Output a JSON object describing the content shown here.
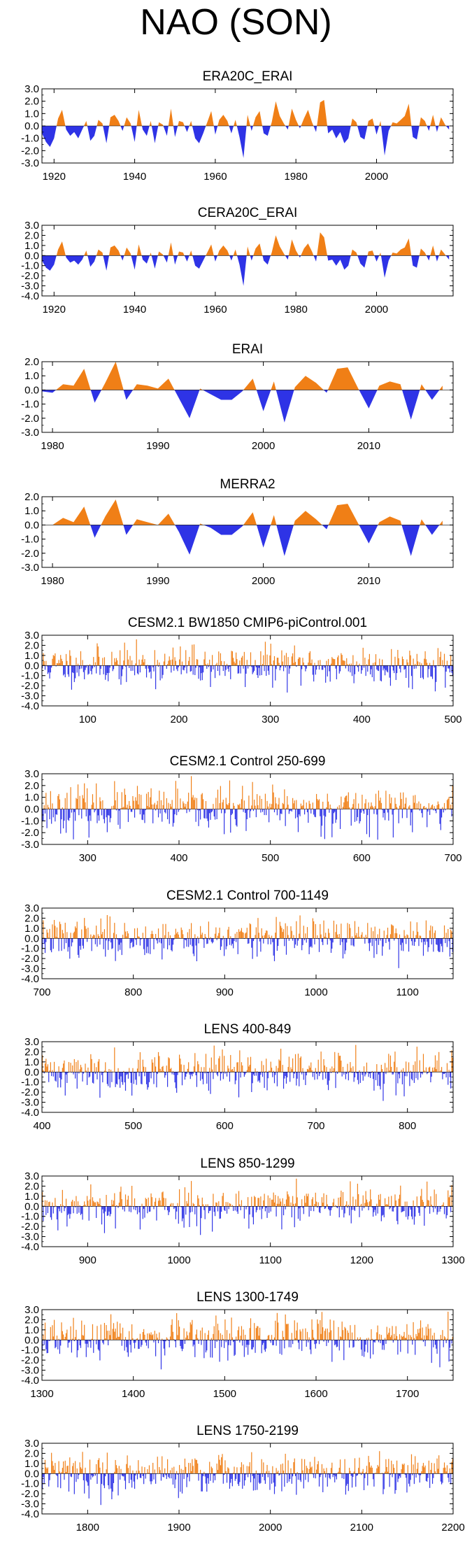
{
  "title": "NAO (SON)",
  "colors": {
    "positive": "#f07f16",
    "negative": "#2e33e6",
    "axis": "#000000"
  },
  "chart_data": [
    {
      "type": "area",
      "title": "ERA20C_ERAI",
      "xlim": [
        1917,
        2019
      ],
      "xticks": [
        1920,
        1940,
        1960,
        1980,
        2000
      ],
      "ylim": [
        -3.0,
        3.0
      ],
      "yticks": [
        "3.0",
        "2.0",
        "1.0",
        "0.0",
        "-1.0",
        "-2.0",
        "-3.0"
      ],
      "series": [
        {
          "x": [
            1917,
            1918,
            1919,
            1920,
            1921,
            1922,
            1923,
            1924,
            1925,
            1926,
            1927,
            1928,
            1929,
            1930,
            1931,
            1932,
            1933,
            1934,
            1935,
            1936,
            1937,
            1938,
            1939,
            1940,
            1941,
            1942,
            1943,
            1944,
            1945,
            1946,
            1947,
            1948,
            1949,
            1950,
            1951,
            1952,
            1953,
            1954,
            1955,
            1956,
            1957,
            1958,
            1959,
            1960,
            1961,
            1962,
            1963,
            1964,
            1965,
            1966,
            1967,
            1968,
            1969,
            1970,
            1971,
            1972,
            1973,
            1974,
            1975,
            1976,
            1977,
            1978,
            1979,
            1980,
            1981,
            1982,
            1983,
            1984,
            1985,
            1986,
            1987,
            1988,
            1989,
            1990,
            1991,
            1992,
            1993,
            1994,
            1995,
            1996,
            1997,
            1998,
            1999,
            2000,
            2001,
            2002,
            2003,
            2004,
            2005,
            2006,
            2007,
            2008,
            2009,
            2010,
            2011,
            2012,
            2013,
            2014,
            2015,
            2016,
            2017,
            2018
          ],
          "values": [
            -0.6,
            -1.3,
            -1.7,
            -1.0,
            0.6,
            1.3,
            -0.3,
            -0.8,
            -0.5,
            -1.0,
            -0.3,
            0.4,
            -1.2,
            -0.8,
            0.5,
            0.2,
            -1.4,
            0.7,
            0.9,
            0.4,
            -0.4,
            0.7,
            0.2,
            -1.3,
            1.3,
            -0.3,
            -0.8,
            0.4,
            -1.4,
            0.3,
            0.1,
            -0.8,
            1.4,
            -0.9,
            0.4,
            0.3,
            -0.5,
            0.4,
            -1.0,
            -1.4,
            -0.6,
            0.3,
            1.2,
            -0.7,
            0.5,
            0.9,
            0.4,
            -0.6,
            0.5,
            -0.9,
            -2.6,
            0.9,
            -0.4,
            0.7,
            1.2,
            -0.6,
            -0.8,
            0.3,
            2.0,
            0.8,
            0.2,
            -0.3,
            1.4,
            0.5,
            -0.2,
            0.6,
            1.3,
            0.3,
            -0.5,
            1.9,
            2.1,
            -0.6,
            -0.3,
            -1.0,
            -0.5,
            -1.4,
            -1.0,
            0.6,
            0.3,
            -0.9,
            -1.1,
            0.4,
            0.6,
            -0.7,
            0.4,
            -2.4,
            -0.4,
            0.3,
            0.2,
            0.5,
            0.8,
            1.8,
            -0.9,
            -1.1,
            0.7,
            0.4,
            -0.4,
            0.9,
            -0.5,
            0.7,
            0.1,
            -0.3
          ]
        }
      ]
    },
    {
      "type": "area",
      "title": "CERA20C_ERAI",
      "xlim": [
        1917,
        2019
      ],
      "xticks": [
        1920,
        1940,
        1960,
        1980,
        2000
      ],
      "ylim": [
        -4.0,
        3.0
      ],
      "yticks": [
        "3.0",
        "2.0",
        "1.0",
        "0.0",
        "-1.0",
        "-2.0",
        "-3.0",
        "-4.0"
      ],
      "series": [
        {
          "x": [
            1917,
            1918,
            1919,
            1920,
            1921,
            1922,
            1923,
            1924,
            1925,
            1926,
            1927,
            1928,
            1929,
            1930,
            1931,
            1932,
            1933,
            1934,
            1935,
            1936,
            1937,
            1938,
            1939,
            1940,
            1941,
            1942,
            1943,
            1944,
            1945,
            1946,
            1947,
            1948,
            1949,
            1950,
            1951,
            1952,
            1953,
            1954,
            1955,
            1956,
            1957,
            1958,
            1959,
            1960,
            1961,
            1962,
            1963,
            1964,
            1965,
            1966,
            1967,
            1968,
            1969,
            1970,
            1971,
            1972,
            1973,
            1974,
            1975,
            1976,
            1977,
            1978,
            1979,
            1980,
            1981,
            1982,
            1983,
            1984,
            1985,
            1986,
            1987,
            1988,
            1989,
            1990,
            1991,
            1992,
            1993,
            1994,
            1995,
            1996,
            1997,
            1998,
            1999,
            2000,
            2001,
            2002,
            2003,
            2004,
            2005,
            2006,
            2007,
            2008,
            2009,
            2010,
            2011,
            2012,
            2013,
            2014,
            2015,
            2016,
            2017,
            2018
          ],
          "values": [
            -0.5,
            -1.2,
            -1.5,
            -0.9,
            0.6,
            1.4,
            -0.2,
            -0.7,
            -0.5,
            -0.9,
            -0.4,
            0.5,
            -1.1,
            -0.6,
            0.6,
            0.3,
            -1.5,
            0.8,
            1.0,
            0.5,
            -0.5,
            0.8,
            0.2,
            -1.4,
            1.1,
            -0.4,
            -0.8,
            0.3,
            -1.3,
            0.4,
            0.1,
            -0.7,
            1.3,
            -0.9,
            0.4,
            0.3,
            -0.6,
            0.5,
            -1.0,
            -1.3,
            -0.5,
            0.3,
            1.1,
            -0.6,
            0.5,
            1.0,
            0.5,
            -0.5,
            0.6,
            -0.9,
            -3.0,
            0.9,
            -0.5,
            0.7,
            1.2,
            -0.5,
            -0.9,
            0.3,
            2.0,
            0.9,
            0.2,
            -0.4,
            1.6,
            0.5,
            -0.2,
            0.7,
            1.2,
            0.4,
            -0.6,
            2.3,
            1.8,
            -0.5,
            -0.4,
            -1.0,
            -0.4,
            -1.4,
            -1.0,
            0.6,
            0.3,
            -0.8,
            -1.2,
            0.4,
            0.5,
            -0.6,
            0.3,
            -2.2,
            -0.5,
            0.3,
            0.2,
            0.6,
            0.8,
            1.7,
            -1.0,
            -1.2,
            0.7,
            0.3,
            -0.5,
            1.0,
            -0.6,
            0.6,
            0.1,
            -0.4
          ]
        }
      ]
    },
    {
      "type": "area",
      "title": "ERAI",
      "xlim": [
        1979,
        2018
      ],
      "xticks": [
        1980,
        1990,
        2000,
        2010
      ],
      "ylim": [
        -3.0,
        2.0
      ],
      "yticks": [
        "2.0",
        "1.0",
        "0.0",
        "-1.0",
        "-2.0",
        "-3.0"
      ],
      "series": [
        {
          "x": [
            1979,
            1980,
            1981,
            1982,
            1983,
            1984,
            1985,
            1986,
            1987,
            1988,
            1989,
            1990,
            1991,
            1992,
            1993,
            1994,
            1995,
            1996,
            1997,
            1998,
            1999,
            2000,
            2001,
            2002,
            2003,
            2004,
            2005,
            2006,
            2007,
            2008,
            2009,
            2010,
            2011,
            2012,
            2013,
            2014,
            2015,
            2016,
            2017
          ],
          "values": [
            -0.1,
            -0.2,
            0.4,
            0.3,
            1.5,
            -0.9,
            0.5,
            2.0,
            -0.7,
            0.4,
            0.3,
            0.1,
            0.8,
            -0.6,
            -2.0,
            0.1,
            -0.3,
            -0.7,
            -0.7,
            -0.1,
            0.8,
            -1.5,
            0.6,
            -2.3,
            0.2,
            1.0,
            0.5,
            -0.2,
            1.5,
            1.6,
            0.1,
            -1.3,
            0.3,
            0.6,
            0.4,
            -2.1,
            0.4,
            -0.7,
            0.3
          ]
        }
      ]
    },
    {
      "type": "area",
      "title": "MERRA2",
      "xlim": [
        1979,
        2018
      ],
      "xticks": [
        1980,
        1990,
        2000,
        2010
      ],
      "ylim": [
        -3.0,
        2.0
      ],
      "yticks": [
        "2.0",
        "1.0",
        "0.0",
        "-1.0",
        "-2.0",
        "-3.0"
      ],
      "series": [
        {
          "x": [
            1980,
            1981,
            1982,
            1983,
            1984,
            1985,
            1986,
            1987,
            1988,
            1989,
            1990,
            1991,
            1992,
            1993,
            1994,
            1995,
            1996,
            1997,
            1998,
            1999,
            2000,
            2001,
            2002,
            2003,
            2004,
            2005,
            2006,
            2007,
            2008,
            2009,
            2010,
            2011,
            2012,
            2013,
            2014,
            2015,
            2016,
            2017
          ],
          "values": [
            0.0,
            0.5,
            0.2,
            1.3,
            -0.9,
            0.6,
            1.8,
            -0.7,
            0.4,
            0.2,
            0.0,
            0.8,
            -0.5,
            -2.1,
            0.1,
            -0.2,
            -0.7,
            -0.7,
            -0.1,
            0.9,
            -1.6,
            0.7,
            -2.2,
            0.3,
            1.0,
            0.4,
            -0.3,
            1.4,
            1.5,
            0.1,
            -1.3,
            0.2,
            0.6,
            0.3,
            -2.2,
            0.4,
            -0.7,
            0.3
          ]
        }
      ]
    },
    {
      "type": "bar",
      "title": "CESM2.1 BW1850 CMIP6-piControl.001",
      "xlim": [
        50,
        500
      ],
      "xticks": [
        100,
        200,
        300,
        400,
        500
      ],
      "ylim": [
        -4.0,
        3.0
      ],
      "yticks": [
        "3.0",
        "2.0",
        "1.0",
        "0.0",
        "-1.0",
        "-2.0",
        "-3.0",
        "-4.0"
      ],
      "series": [
        {
          "x_start": 50,
          "x_end": 499,
          "seed": 11,
          "amplitude": 0.95
        }
      ]
    },
    {
      "type": "bar",
      "title": "CESM2.1 Control 250-699",
      "xlim": [
        250,
        700
      ],
      "xticks": [
        300,
        400,
        500,
        600,
        700
      ],
      "ylim": [
        -3.0,
        3.0
      ],
      "yticks": [
        "3.0",
        "2.0",
        "1.0",
        "0.0",
        "-1.0",
        "-2.0",
        "-3.0"
      ],
      "series": [
        {
          "x_start": 250,
          "x_end": 699,
          "seed": 23,
          "amplitude": 0.95
        }
      ]
    },
    {
      "type": "bar",
      "title": "CESM2.1 Control 700-1149",
      "xlim": [
        700,
        1150
      ],
      "xticks": [
        700,
        800,
        900,
        1000,
        1100
      ],
      "ylim": [
        -4.0,
        3.0
      ],
      "yticks": [
        "3.0",
        "2.0",
        "1.0",
        "0.0",
        "-1.0",
        "-2.0",
        "-3.0",
        "-4.0"
      ],
      "series": [
        {
          "x_start": 700,
          "x_end": 1149,
          "seed": 37,
          "amplitude": 0.95
        }
      ]
    },
    {
      "type": "bar",
      "title": "LENS 400-849",
      "xlim": [
        400,
        850
      ],
      "xticks": [
        400,
        500,
        600,
        700,
        800
      ],
      "ylim": [
        -4.0,
        3.0
      ],
      "yticks": [
        "3.0",
        "2.0",
        "1.0",
        "0.0",
        "-1.0",
        "-2.0",
        "-3.0",
        "-4.0"
      ],
      "series": [
        {
          "x_start": 400,
          "x_end": 849,
          "seed": 41,
          "amplitude": 1.0
        }
      ]
    },
    {
      "type": "bar",
      "title": "LENS 850-1299",
      "xlim": [
        850,
        1300
      ],
      "xticks": [
        900,
        1000,
        1100,
        1200,
        1300
      ],
      "ylim": [
        -4.0,
        3.0
      ],
      "yticks": [
        "3.0",
        "2.0",
        "1.0",
        "0.0",
        "-1.0",
        "-2.0",
        "-3.0",
        "-4.0"
      ],
      "series": [
        {
          "x_start": 850,
          "x_end": 1299,
          "seed": 53,
          "amplitude": 1.0
        }
      ]
    },
    {
      "type": "bar",
      "title": "LENS 1300-1749",
      "xlim": [
        1300,
        1750
      ],
      "xticks": [
        1300,
        1400,
        1500,
        1600,
        1700
      ],
      "ylim": [
        -4.0,
        3.0
      ],
      "yticks": [
        "3.0",
        "2.0",
        "1.0",
        "0.0",
        "-1.0",
        "-2.0",
        "-3.0",
        "-4.0"
      ],
      "series": [
        {
          "x_start": 1300,
          "x_end": 1749,
          "seed": 67,
          "amplitude": 1.0
        }
      ]
    },
    {
      "type": "bar",
      "title": "LENS 1750-2199",
      "xlim": [
        1750,
        2200
      ],
      "xticks": [
        1800,
        1900,
        2000,
        2100,
        2200
      ],
      "ylim": [
        -4.0,
        3.0
      ],
      "yticks": [
        "3.0",
        "2.0",
        "1.0",
        "0.0",
        "-1.0",
        "-2.0",
        "-3.0",
        "-4.0"
      ],
      "series": [
        {
          "x_start": 1750,
          "x_end": 2199,
          "seed": 79,
          "amplitude": 1.0
        }
      ]
    }
  ]
}
